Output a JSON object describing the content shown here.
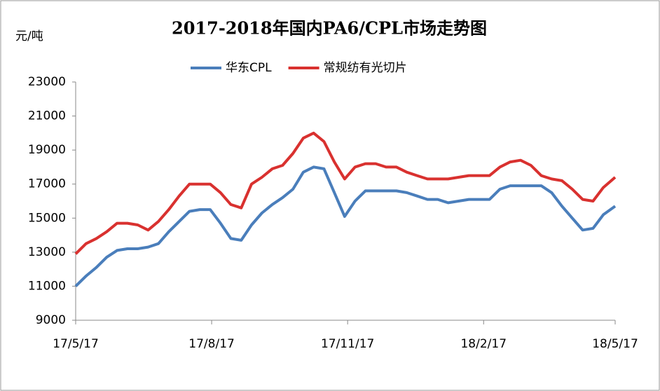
{
  "chart_data": {
    "type": "line",
    "title": "2017-2018年国内PA6/CPL市场走势图",
    "y_label": "元/吨",
    "x": [
      "2017-05-17",
      "2017-05-24",
      "2017-05-31",
      "2017-06-07",
      "2017-06-14",
      "2017-06-21",
      "2017-06-28",
      "2017-07-05",
      "2017-07-12",
      "2017-07-19",
      "2017-07-26",
      "2017-08-02",
      "2017-08-09",
      "2017-08-16",
      "2017-08-23",
      "2017-08-30",
      "2017-09-06",
      "2017-09-13",
      "2017-09-20",
      "2017-09-27",
      "2017-10-04",
      "2017-10-11",
      "2017-10-18",
      "2017-10-25",
      "2017-11-01",
      "2017-11-08",
      "2017-11-15",
      "2017-11-22",
      "2017-11-29",
      "2017-12-06",
      "2017-12-13",
      "2017-12-20",
      "2017-12-27",
      "2018-01-03",
      "2018-01-10",
      "2018-01-17",
      "2018-01-24",
      "2018-01-31",
      "2018-02-07",
      "2018-02-14",
      "2018-02-21",
      "2018-02-28",
      "2018-03-07",
      "2018-03-14",
      "2018-03-21",
      "2018-03-28",
      "2018-04-04",
      "2018-04-11",
      "2018-04-18",
      "2018-04-25",
      "2018-05-02",
      "2018-05-09",
      "2018-05-17"
    ],
    "series": [
      {
        "name": "华东CPL",
        "color": "#4a7ebb",
        "values": [
          11000,
          11600,
          12100,
          12700,
          13100,
          13200,
          13200,
          13300,
          13500,
          14200,
          14800,
          15400,
          15500,
          15500,
          14700,
          13800,
          13700,
          14600,
          15300,
          15800,
          16200,
          16700,
          17700,
          18000,
          17900,
          16500,
          15100,
          16000,
          16600,
          16600,
          16600,
          16600,
          16500,
          16300,
          16100,
          16100,
          15900,
          16000,
          16100,
          16100,
          16100,
          16700,
          16900,
          16900,
          16900,
          16900,
          16500,
          15700,
          15000,
          14300,
          14400,
          15200,
          15700
        ]
      },
      {
        "name": "常规纺有光切片",
        "color": "#d9312f",
        "values": [
          12900,
          13500,
          13800,
          14200,
          14700,
          14700,
          14600,
          14300,
          14800,
          15500,
          16300,
          17000,
          17000,
          17000,
          16500,
          15800,
          15600,
          17000,
          17400,
          17900,
          18100,
          18800,
          19700,
          20000,
          19500,
          18300,
          17300,
          18000,
          18200,
          18200,
          18000,
          18000,
          17700,
          17500,
          17300,
          17300,
          17300,
          17400,
          17500,
          17500,
          17500,
          18000,
          18300,
          18400,
          18100,
          17500,
          17300,
          17200,
          16700,
          16100,
          16000,
          16800,
          17400
        ]
      }
    ],
    "xlim": [
      "2017-05-17",
      "2018-05-17"
    ],
    "xticks": [
      {
        "value": "2017-05-17",
        "label": "17/5/17"
      },
      {
        "value": "2017-08-17",
        "label": "17/8/17"
      },
      {
        "value": "2017-11-17",
        "label": "17/11/17"
      },
      {
        "value": "2018-02-17",
        "label": "18/2/17"
      },
      {
        "value": "2018-05-17",
        "label": "18/5/17"
      }
    ],
    "ylim": [
      9000,
      23000
    ],
    "yticks": [
      9000,
      11000,
      13000,
      15000,
      17000,
      19000,
      21000,
      23000
    ],
    "grid": false,
    "legend": "top"
  }
}
